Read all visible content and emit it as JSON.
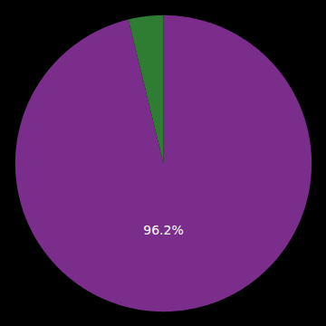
{
  "chart_data": {
    "type": "pie",
    "values": [
      96.2,
      3.8
    ],
    "colors": [
      "#7b2d8b",
      "#2e7d32"
    ],
    "annotation": "96.2%"
  }
}
